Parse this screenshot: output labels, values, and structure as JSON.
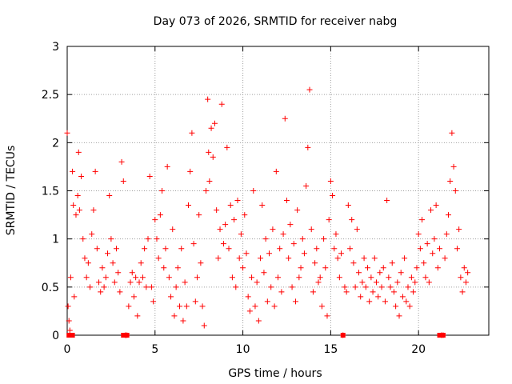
{
  "chart_data": {
    "type": "scatter",
    "title": "Day 073 of 2026, SRMTID for receiver nabg",
    "xlabel": "GPS time / hours",
    "ylabel": "SRMTID / TECUs",
    "xlim": [
      0,
      24
    ],
    "ylim": [
      0,
      3
    ],
    "xticks": [
      0,
      5,
      10,
      15,
      20
    ],
    "xtick_labels": [
      "0",
      "5",
      "10",
      "15",
      "20"
    ],
    "yticks": [
      0,
      0.5,
      1,
      1.5,
      2,
      2.5,
      3
    ],
    "ytick_labels": [
      "0",
      "0.5",
      "1",
      "1.5",
      "2",
      "2.5",
      "3"
    ],
    "grid": true,
    "marker": "+",
    "color": "#ff0000",
    "series": [
      {
        "name": "SRMTID",
        "points": [
          [
            0.0,
            2.1
          ],
          [
            0.05,
            0.3
          ],
          [
            0.1,
            0.15
          ],
          [
            0.15,
            0.05
          ],
          [
            0.2,
            0.6
          ],
          [
            0.3,
            1.7
          ],
          [
            0.35,
            1.35
          ],
          [
            0.4,
            0.4
          ],
          [
            0.5,
            1.25
          ],
          [
            0.6,
            1.45
          ],
          [
            0.65,
            1.9
          ],
          [
            0.7,
            1.3
          ],
          [
            0.8,
            1.65
          ],
          [
            0.9,
            1.0
          ],
          [
            1.0,
            0.8
          ],
          [
            1.1,
            0.6
          ],
          [
            1.2,
            0.75
          ],
          [
            1.3,
            0.5
          ],
          [
            1.4,
            1.05
          ],
          [
            1.5,
            1.3
          ],
          [
            1.6,
            1.7
          ],
          [
            1.7,
            0.9
          ],
          [
            1.8,
            0.55
          ],
          [
            1.9,
            0.45
          ],
          [
            2.0,
            0.7
          ],
          [
            2.1,
            0.5
          ],
          [
            2.2,
            0.6
          ],
          [
            2.3,
            0.85
          ],
          [
            2.4,
            1.45
          ],
          [
            2.5,
            1.0
          ],
          [
            2.6,
            0.75
          ],
          [
            2.7,
            0.55
          ],
          [
            2.8,
            0.9
          ],
          [
            2.9,
            0.65
          ],
          [
            3.0,
            0.45
          ],
          [
            3.1,
            1.8
          ],
          [
            3.2,
            1.6
          ],
          [
            3.3,
            0.0
          ],
          [
            3.4,
            0.0
          ],
          [
            3.5,
            0.3
          ],
          [
            3.6,
            0.55
          ],
          [
            3.7,
            0.65
          ],
          [
            3.8,
            0.4
          ],
          [
            3.9,
            0.6
          ],
          [
            4.0,
            0.2
          ],
          [
            4.1,
            0.55
          ],
          [
            4.2,
            0.75
          ],
          [
            4.3,
            0.6
          ],
          [
            4.4,
            0.9
          ],
          [
            4.5,
            0.5
          ],
          [
            4.6,
            1.0
          ],
          [
            4.7,
            1.65
          ],
          [
            4.8,
            0.5
          ],
          [
            4.9,
            0.35
          ],
          [
            5.0,
            1.2
          ],
          [
            5.1,
            1.0
          ],
          [
            5.2,
            0.8
          ],
          [
            5.3,
            1.25
          ],
          [
            5.4,
            1.5
          ],
          [
            5.5,
            0.7
          ],
          [
            5.6,
            0.9
          ],
          [
            5.7,
            1.75
          ],
          [
            5.8,
            0.6
          ],
          [
            5.9,
            0.4
          ],
          [
            6.0,
            1.1
          ],
          [
            6.1,
            0.2
          ],
          [
            6.2,
            0.5
          ],
          [
            6.3,
            0.7
          ],
          [
            6.4,
            0.3
          ],
          [
            6.5,
            0.9
          ],
          [
            6.6,
            0.15
          ],
          [
            6.7,
            0.55
          ],
          [
            6.8,
            0.3
          ],
          [
            6.9,
            1.35
          ],
          [
            7.0,
            1.7
          ],
          [
            7.1,
            2.1
          ],
          [
            7.2,
            0.95
          ],
          [
            7.3,
            0.35
          ],
          [
            7.4,
            0.6
          ],
          [
            7.5,
            1.25
          ],
          [
            7.6,
            0.75
          ],
          [
            7.7,
            0.3
          ],
          [
            7.8,
            0.1
          ],
          [
            7.9,
            1.5
          ],
          [
            8.0,
            2.45
          ],
          [
            8.05,
            1.9
          ],
          [
            8.1,
            1.6
          ],
          [
            8.2,
            2.15
          ],
          [
            8.3,
            1.85
          ],
          [
            8.4,
            2.2
          ],
          [
            8.5,
            1.3
          ],
          [
            8.6,
            0.8
          ],
          [
            8.7,
            1.1
          ],
          [
            8.8,
            2.4
          ],
          [
            8.9,
            0.95
          ],
          [
            9.0,
            1.15
          ],
          [
            9.1,
            1.95
          ],
          [
            9.2,
            0.9
          ],
          [
            9.3,
            1.35
          ],
          [
            9.4,
            0.6
          ],
          [
            9.5,
            1.2
          ],
          [
            9.6,
            0.5
          ],
          [
            9.7,
            1.4
          ],
          [
            9.8,
            0.8
          ],
          [
            9.9,
            1.05
          ],
          [
            10.0,
            0.7
          ],
          [
            10.1,
            1.25
          ],
          [
            10.2,
            0.85
          ],
          [
            10.3,
            0.4
          ],
          [
            10.4,
            0.25
          ],
          [
            10.5,
            0.6
          ],
          [
            10.6,
            1.5
          ],
          [
            10.7,
            0.3
          ],
          [
            10.8,
            0.55
          ],
          [
            10.9,
            0.15
          ],
          [
            11.0,
            0.8
          ],
          [
            11.1,
            1.35
          ],
          [
            11.2,
            0.65
          ],
          [
            11.3,
            1.0
          ],
          [
            11.4,
            0.35
          ],
          [
            11.5,
            0.85
          ],
          [
            11.6,
            0.5
          ],
          [
            11.7,
            1.1
          ],
          [
            11.8,
            0.3
          ],
          [
            11.9,
            1.7
          ],
          [
            12.0,
            0.6
          ],
          [
            12.1,
            0.9
          ],
          [
            12.2,
            0.45
          ],
          [
            12.3,
            1.05
          ],
          [
            12.4,
            2.25
          ],
          [
            12.5,
            1.4
          ],
          [
            12.6,
            0.8
          ],
          [
            12.7,
            1.15
          ],
          [
            12.8,
            0.5
          ],
          [
            12.9,
            0.95
          ],
          [
            13.0,
            0.35
          ],
          [
            13.1,
            1.3
          ],
          [
            13.2,
            0.6
          ],
          [
            13.3,
            0.7
          ],
          [
            13.4,
            1.0
          ],
          [
            13.5,
            0.85
          ],
          [
            13.6,
            1.55
          ],
          [
            13.7,
            1.95
          ],
          [
            13.8,
            2.55
          ],
          [
            13.9,
            1.1
          ],
          [
            14.0,
            0.45
          ],
          [
            14.1,
            0.75
          ],
          [
            14.2,
            0.9
          ],
          [
            14.3,
            0.55
          ],
          [
            14.4,
            0.6
          ],
          [
            14.5,
            0.3
          ],
          [
            14.6,
            1.0
          ],
          [
            14.7,
            0.7
          ],
          [
            14.8,
            0.2
          ],
          [
            14.9,
            1.2
          ],
          [
            15.0,
            1.6
          ],
          [
            15.1,
            1.45
          ],
          [
            15.2,
            0.9
          ],
          [
            15.3,
            1.05
          ],
          [
            15.4,
            0.8
          ],
          [
            15.5,
            0.6
          ],
          [
            15.6,
            0.85
          ],
          [
            15.7,
            0.0
          ],
          [
            15.8,
            0.5
          ],
          [
            15.9,
            0.45
          ],
          [
            16.0,
            1.35
          ],
          [
            16.1,
            0.9
          ],
          [
            16.2,
            1.2
          ],
          [
            16.3,
            0.75
          ],
          [
            16.4,
            0.5
          ],
          [
            16.5,
            1.1
          ],
          [
            16.6,
            0.65
          ],
          [
            16.7,
            0.4
          ],
          [
            16.8,
            0.55
          ],
          [
            16.9,
            0.8
          ],
          [
            17.0,
            0.5
          ],
          [
            17.1,
            0.7
          ],
          [
            17.2,
            0.35
          ],
          [
            17.3,
            0.6
          ],
          [
            17.4,
            0.45
          ],
          [
            17.5,
            0.8
          ],
          [
            17.6,
            0.55
          ],
          [
            17.7,
            0.4
          ],
          [
            17.8,
            0.65
          ],
          [
            17.9,
            0.5
          ],
          [
            18.0,
            0.7
          ],
          [
            18.1,
            0.35
          ],
          [
            18.2,
            1.4
          ],
          [
            18.3,
            0.6
          ],
          [
            18.4,
            0.5
          ],
          [
            18.5,
            0.75
          ],
          [
            18.6,
            0.45
          ],
          [
            18.7,
            0.3
          ],
          [
            18.8,
            0.55
          ],
          [
            18.9,
            0.2
          ],
          [
            19.0,
            0.65
          ],
          [
            19.1,
            0.4
          ],
          [
            19.2,
            0.8
          ],
          [
            19.3,
            0.35
          ],
          [
            19.4,
            0.5
          ],
          [
            19.5,
            0.3
          ],
          [
            19.6,
            0.6
          ],
          [
            19.7,
            0.45
          ],
          [
            19.8,
            0.55
          ],
          [
            19.9,
            0.7
          ],
          [
            20.0,
            1.05
          ],
          [
            20.1,
            0.9
          ],
          [
            20.2,
            1.2
          ],
          [
            20.3,
            0.75
          ],
          [
            20.4,
            0.6
          ],
          [
            20.5,
            0.95
          ],
          [
            20.6,
            0.55
          ],
          [
            20.7,
            1.3
          ],
          [
            20.8,
            0.85
          ],
          [
            20.9,
            1.0
          ],
          [
            21.0,
            1.35
          ],
          [
            21.1,
            0.7
          ],
          [
            21.2,
            0.9
          ],
          [
            21.3,
            0.0
          ],
          [
            21.4,
            0.0
          ],
          [
            21.5,
            0.8
          ],
          [
            21.6,
            1.05
          ],
          [
            21.7,
            1.25
          ],
          [
            21.8,
            1.6
          ],
          [
            21.9,
            2.1
          ],
          [
            22.0,
            1.75
          ],
          [
            22.1,
            1.5
          ],
          [
            22.2,
            0.9
          ],
          [
            22.3,
            1.1
          ],
          [
            22.4,
            0.6
          ],
          [
            22.5,
            0.45
          ],
          [
            22.6,
            0.7
          ],
          [
            22.7,
            0.55
          ],
          [
            22.8,
            0.65
          ]
        ]
      }
    ],
    "zero_markers": [
      0.1,
      0.3,
      3.2,
      3.4,
      15.7,
      21.2,
      21.4
    ]
  }
}
